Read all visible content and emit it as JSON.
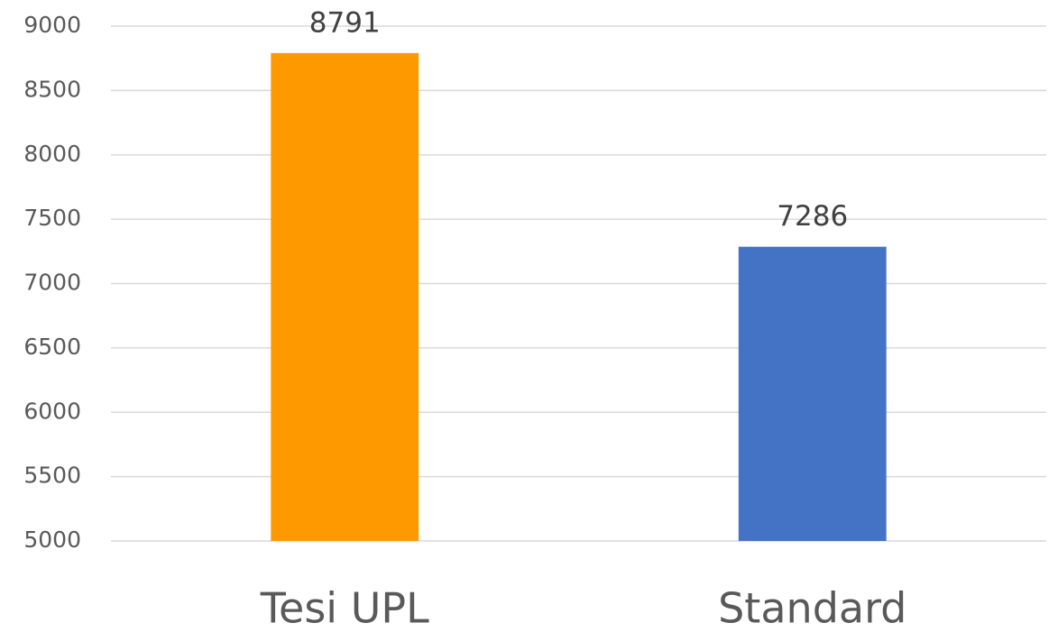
{
  "chart_data": {
    "type": "bar",
    "categories": [
      "Tesi UPL",
      "Standard"
    ],
    "values": [
      8791,
      7286
    ],
    "colors": [
      "#ff9900",
      "#4472c4"
    ],
    "ylim": [
      5000,
      9000
    ],
    "yticks": [
      5000,
      5500,
      6000,
      6500,
      7000,
      7500,
      8000,
      8500,
      9000
    ],
    "grid": true
  }
}
